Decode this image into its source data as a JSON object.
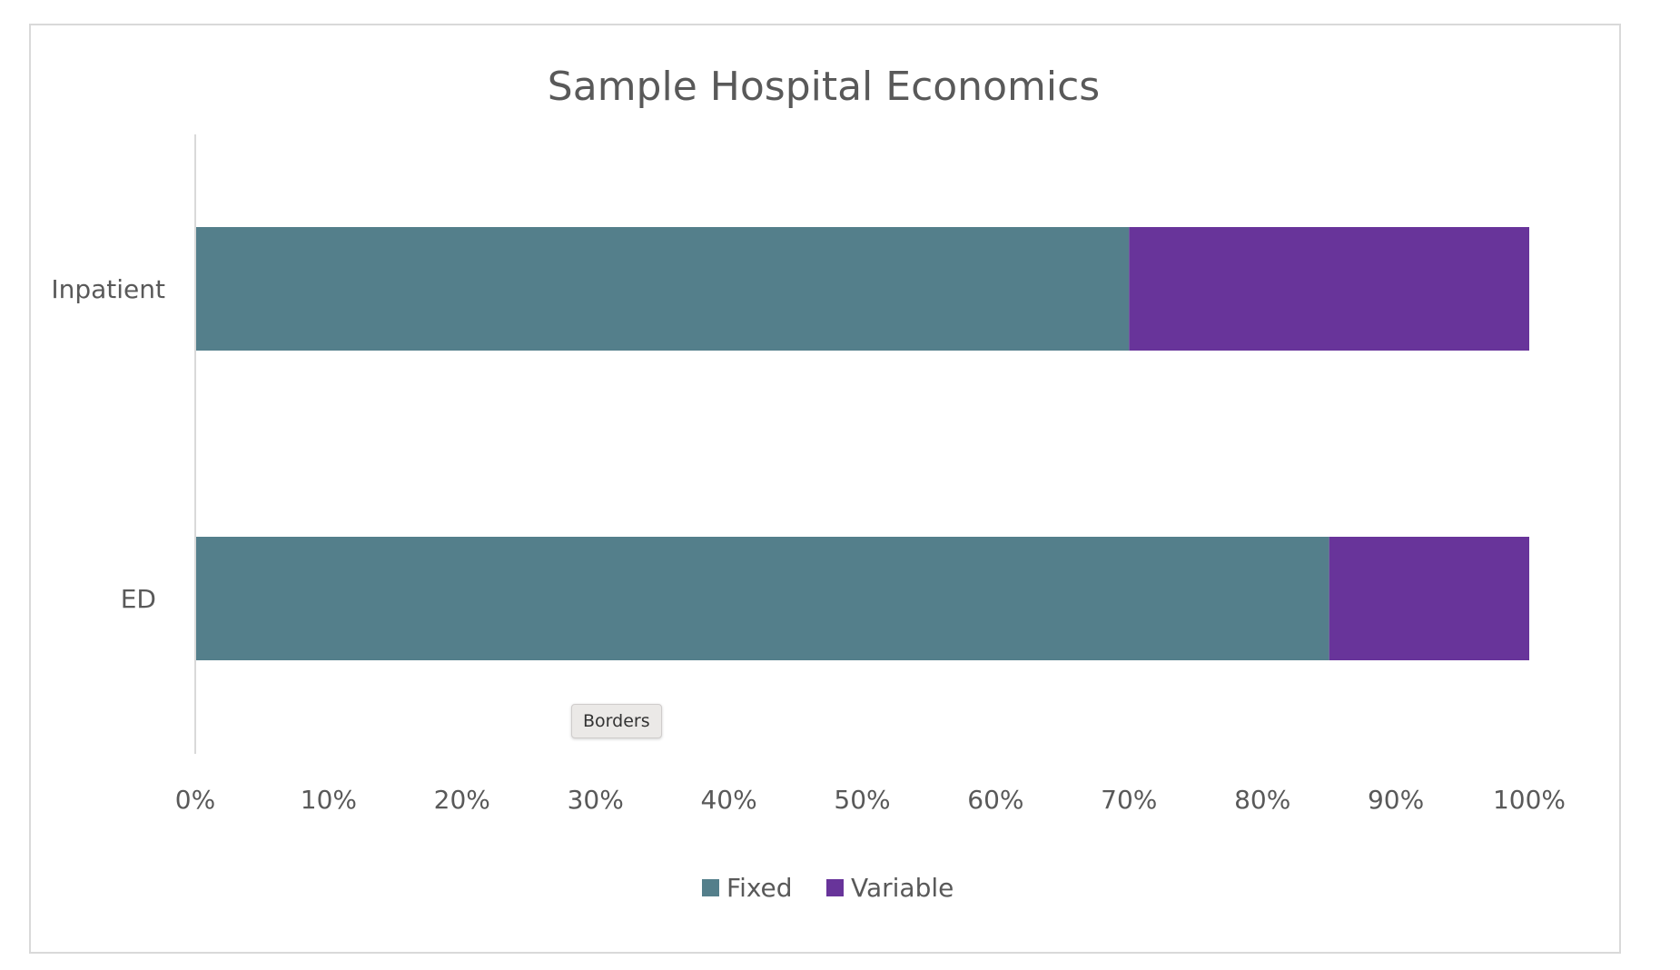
{
  "chart_data": {
    "type": "bar",
    "orientation": "horizontal",
    "stacked": "percent",
    "title": "Sample Hospital Economics",
    "categories": [
      "Inpatient",
      "ED"
    ],
    "series": [
      {
        "name": "Fixed",
        "values": [
          70,
          85
        ],
        "color": "#547f8b"
      },
      {
        "name": "Variable",
        "values": [
          30,
          15
        ],
        "color": "#68349a"
      }
    ],
    "xlim": [
      0,
      100
    ],
    "x_ticks": [
      "0%",
      "10%",
      "20%",
      "30%",
      "40%",
      "50%",
      "60%",
      "70%",
      "80%",
      "90%",
      "100%"
    ],
    "grid": false,
    "legend": "bottom"
  },
  "tooltip": {
    "text": "Borders"
  }
}
